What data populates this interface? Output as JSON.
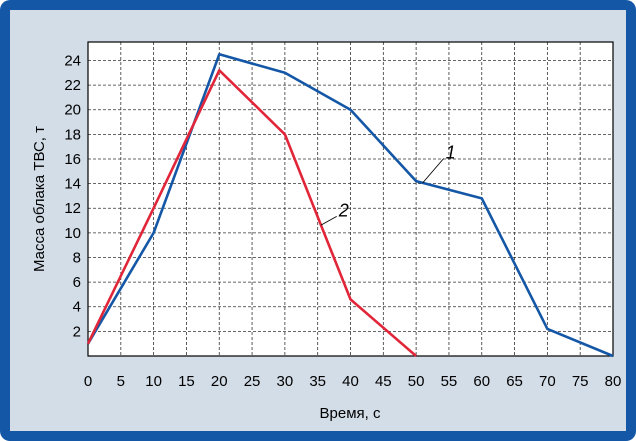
{
  "chart_data": {
    "type": "line",
    "xlabel": "Время, с",
    "ylabel": "Масса облака ТВС, т",
    "xlim": [
      0,
      80
    ],
    "ylim": [
      0,
      25.5
    ],
    "xticks": [
      0,
      5,
      10,
      15,
      20,
      25,
      30,
      35,
      40,
      45,
      50,
      55,
      60,
      65,
      70,
      75,
      80
    ],
    "yticks": [
      2,
      4,
      6,
      8,
      10,
      12,
      14,
      16,
      18,
      20,
      22,
      24
    ],
    "grid": true,
    "series": [
      {
        "name": "1",
        "color": "#1457a6",
        "x": [
          0,
          10,
          20,
          30,
          40,
          50,
          60,
          70,
          80
        ],
        "y": [
          1,
          10,
          24.5,
          23,
          20,
          14.2,
          12.8,
          2.2,
          0
        ]
      },
      {
        "name": "2",
        "color": "#e1263a",
        "x": [
          0,
          10,
          20,
          30,
          40,
          50
        ],
        "y": [
          1,
          12,
          23.2,
          18,
          4.6,
          0
        ]
      }
    ],
    "annotations": [
      {
        "text": "1",
        "series": "1",
        "at_x": 51,
        "label_x": 54.5,
        "label_y": 16.2
      },
      {
        "text": "2",
        "series": "2",
        "at_x": 35.5,
        "label_x": 38.2,
        "label_y": 11.5
      }
    ]
  }
}
